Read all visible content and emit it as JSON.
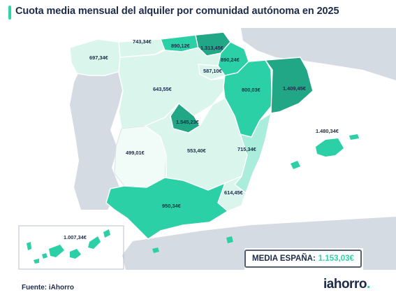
{
  "title": "Cuota media mensual del alquiler por comunidad autónoma en 2025",
  "colors": {
    "accent": "#2fd3a8",
    "darkest": "#22a786",
    "dark": "#2bd0a6",
    "mid": "#aaeddc",
    "light": "#d9f5ec",
    "lightest": "#f1fbf7",
    "neighbours": "#d5dbe3"
  },
  "regions": [
    {
      "name": "Galicia",
      "value": "697,34€"
    },
    {
      "name": "Asturias",
      "value": "743,34€"
    },
    {
      "name": "Cantabria",
      "value": "890,12€"
    },
    {
      "name": "País Vasco",
      "value": "1.313,45€"
    },
    {
      "name": "Navarra",
      "value": "890,24€"
    },
    {
      "name": "La Rioja",
      "value": "587,10€"
    },
    {
      "name": "Castilla y León",
      "value": "643,55€"
    },
    {
      "name": "Aragón",
      "value": "800,03€"
    },
    {
      "name": "Cataluña",
      "value": "1.409,45€"
    },
    {
      "name": "Madrid",
      "value": "1.545,23€"
    },
    {
      "name": "Extremadura",
      "value": "499,01€"
    },
    {
      "name": "Castilla-La Mancha",
      "value": "553,40€"
    },
    {
      "name": "Comunidad Valenciana",
      "value": "715,34€"
    },
    {
      "name": "Islas Baleares",
      "value": "1.480,34€"
    },
    {
      "name": "Región de Murcia",
      "value": "614,45€"
    },
    {
      "name": "Andalucía",
      "value": "950,34€"
    },
    {
      "name": "Islas Canarias",
      "value": "1.007,34€"
    }
  ],
  "media": {
    "label": "MEDIA ESPAÑA:",
    "value": "1.153,03€"
  },
  "source": "Fuente: iAhorro",
  "logo": {
    "text": "iahorro",
    "dot": "."
  }
}
